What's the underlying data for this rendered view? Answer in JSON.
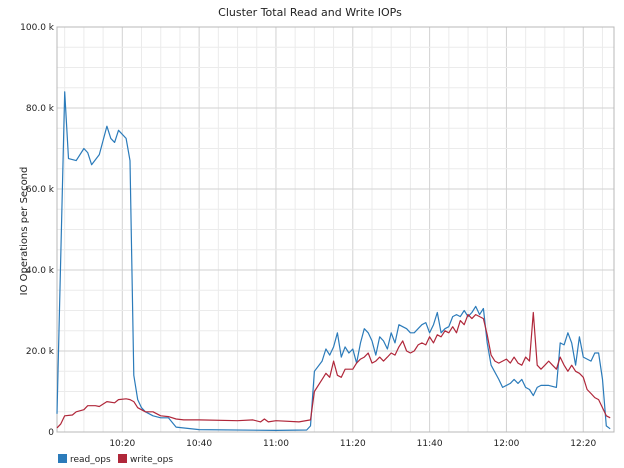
{
  "chart_data": {
    "type": "line",
    "title": "Cluster Total Read and Write IOPs",
    "xlabel": "",
    "ylabel": "IO Operations per Second",
    "ylim": [
      0,
      100000
    ],
    "xlim": [
      "10:03",
      "12:28"
    ],
    "grid": true,
    "legend_placement": "bottom-left",
    "y_ticks": [
      0,
      20000,
      40000,
      60000,
      80000,
      100000
    ],
    "y_tick_labels": [
      "0",
      "20.0 k",
      "40.0 k",
      "60.0 k",
      "80.0 k",
      "100.0 k"
    ],
    "x_tick_labels": [
      "10:20",
      "10:40",
      "11:00",
      "11:20",
      "11:40",
      "12:00",
      "12:20"
    ],
    "series": [
      {
        "name": "read_ops",
        "color": "#2b7bba",
        "points": [
          [
            "10:03",
            4500
          ],
          [
            "10:05",
            84000
          ],
          [
            "10:06",
            67500
          ],
          [
            "10:08",
            67000
          ],
          [
            "10:10",
            70000
          ],
          [
            "10:11",
            69000
          ],
          [
            "10:12",
            66000
          ],
          [
            "10:14",
            68500
          ],
          [
            "10:16",
            75500
          ],
          [
            "10:17",
            72500
          ],
          [
            "10:18",
            71500
          ],
          [
            "10:19",
            74500
          ],
          [
            "10:21",
            72500
          ],
          [
            "10:22",
            67000
          ],
          [
            "10:23",
            14000
          ],
          [
            "10:24",
            8000
          ],
          [
            "10:25",
            6000
          ],
          [
            "10:26",
            5000
          ],
          [
            "10:28",
            4000
          ],
          [
            "10:30",
            3500
          ],
          [
            "10:32",
            3500
          ],
          [
            "10:34",
            1200
          ],
          [
            "10:40",
            600
          ],
          [
            "11:00",
            400
          ],
          [
            "11:08",
            500
          ],
          [
            "11:09",
            1500
          ],
          [
            "11:10",
            15000
          ],
          [
            "11:12",
            17500
          ],
          [
            "11:13",
            20500
          ],
          [
            "11:14",
            19000
          ],
          [
            "11:15",
            21000
          ],
          [
            "11:16",
            24500
          ],
          [
            "11:17",
            18500
          ],
          [
            "11:18",
            21000
          ],
          [
            "11:19",
            19500
          ],
          [
            "11:20",
            20500
          ],
          [
            "11:21",
            17000
          ],
          [
            "11:22",
            22000
          ],
          [
            "11:23",
            25500
          ],
          [
            "11:24",
            24500
          ],
          [
            "11:25",
            22500
          ],
          [
            "11:26",
            19000
          ],
          [
            "11:27",
            23500
          ],
          [
            "11:28",
            22500
          ],
          [
            "11:29",
            20500
          ],
          [
            "11:30",
            24500
          ],
          [
            "11:31",
            22000
          ],
          [
            "11:32",
            26500
          ],
          [
            "11:33",
            26000
          ],
          [
            "11:34",
            25500
          ],
          [
            "11:35",
            24500
          ],
          [
            "11:36",
            24500
          ],
          [
            "11:37",
            25500
          ],
          [
            "11:38",
            26500
          ],
          [
            "11:39",
            27000
          ],
          [
            "11:40",
            24500
          ],
          [
            "11:41",
            26500
          ],
          [
            "11:42",
            29500
          ],
          [
            "11:43",
            24500
          ],
          [
            "11:44",
            25500
          ],
          [
            "11:45",
            26000
          ],
          [
            "11:46",
            28500
          ],
          [
            "11:47",
            29000
          ],
          [
            "11:48",
            28500
          ],
          [
            "11:49",
            30000
          ],
          [
            "11:50",
            28500
          ],
          [
            "11:51",
            29500
          ],
          [
            "11:52",
            31000
          ],
          [
            "11:53",
            29000
          ],
          [
            "11:54",
            30500
          ],
          [
            "11:55",
            22000
          ],
          [
            "11:56",
            16500
          ],
          [
            "11:58",
            13000
          ],
          [
            "11:59",
            11000
          ],
          [
            "12:01",
            12000
          ],
          [
            "12:02",
            13000
          ],
          [
            "12:03",
            12000
          ],
          [
            "12:04",
            13000
          ],
          [
            "12:05",
            11000
          ],
          [
            "12:06",
            10500
          ],
          [
            "12:07",
            9000
          ],
          [
            "12:08",
            11000
          ],
          [
            "12:09",
            11500
          ],
          [
            "12:11",
            11500
          ],
          [
            "12:13",
            11000
          ],
          [
            "12:14",
            22000
          ],
          [
            "12:15",
            21500
          ],
          [
            "12:16",
            24500
          ],
          [
            "12:17",
            22000
          ],
          [
            "12:18",
            16500
          ],
          [
            "12:19",
            23500
          ],
          [
            "12:20",
            18500
          ],
          [
            "12:22",
            17500
          ],
          [
            "12:23",
            19500
          ],
          [
            "12:24",
            19500
          ],
          [
            "12:25",
            13000
          ],
          [
            "12:26",
            1500
          ],
          [
            "12:27",
            800
          ]
        ]
      },
      {
        "name": "write_ops",
        "color": "#b0273a",
        "points": [
          [
            "10:03",
            1000
          ],
          [
            "10:04",
            2000
          ],
          [
            "10:05",
            4000
          ],
          [
            "10:07",
            4200
          ],
          [
            "10:08",
            5000
          ],
          [
            "10:10",
            5500
          ],
          [
            "10:11",
            6500
          ],
          [
            "10:13",
            6500
          ],
          [
            "10:14",
            6300
          ],
          [
            "10:16",
            7500
          ],
          [
            "10:18",
            7200
          ],
          [
            "10:19",
            8000
          ],
          [
            "10:21",
            8200
          ],
          [
            "10:22",
            8000
          ],
          [
            "10:23",
            7500
          ],
          [
            "10:24",
            6000
          ],
          [
            "10:26",
            5000
          ],
          [
            "10:28",
            5000
          ],
          [
            "10:30",
            4000
          ],
          [
            "10:32",
            3800
          ],
          [
            "10:34",
            3200
          ],
          [
            "10:36",
            3000
          ],
          [
            "10:40",
            3000
          ],
          [
            "10:50",
            2800
          ],
          [
            "10:54",
            3000
          ],
          [
            "10:56",
            2500
          ],
          [
            "10:57",
            3200
          ],
          [
            "10:58",
            2500
          ],
          [
            "11:00",
            2800
          ],
          [
            "11:06",
            2500
          ],
          [
            "11:09",
            3000
          ],
          [
            "11:10",
            10000
          ],
          [
            "11:12",
            13000
          ],
          [
            "11:13",
            14500
          ],
          [
            "11:14",
            13500
          ],
          [
            "11:15",
            17500
          ],
          [
            "11:16",
            14000
          ],
          [
            "11:17",
            13500
          ],
          [
            "11:18",
            15500
          ],
          [
            "11:19",
            15500
          ],
          [
            "11:20",
            15500
          ],
          [
            "11:21",
            17000
          ],
          [
            "11:22",
            18000
          ],
          [
            "11:23",
            18500
          ],
          [
            "11:24",
            19500
          ],
          [
            "11:25",
            17000
          ],
          [
            "11:26",
            17500
          ],
          [
            "11:27",
            18500
          ],
          [
            "11:28",
            17500
          ],
          [
            "11:29",
            18500
          ],
          [
            "11:30",
            19500
          ],
          [
            "11:31",
            19000
          ],
          [
            "11:32",
            21000
          ],
          [
            "11:33",
            22500
          ],
          [
            "11:34",
            20000
          ],
          [
            "11:35",
            19500
          ],
          [
            "11:36",
            20000
          ],
          [
            "11:37",
            21500
          ],
          [
            "11:38",
            22000
          ],
          [
            "11:39",
            21500
          ],
          [
            "11:40",
            23500
          ],
          [
            "11:41",
            22000
          ],
          [
            "11:42",
            24000
          ],
          [
            "11:43",
            23500
          ],
          [
            "11:44",
            25000
          ],
          [
            "11:45",
            24500
          ],
          [
            "11:46",
            26000
          ],
          [
            "11:47",
            24500
          ],
          [
            "11:48",
            27500
          ],
          [
            "11:49",
            26500
          ],
          [
            "11:50",
            29000
          ],
          [
            "11:51",
            28000
          ],
          [
            "11:52",
            29000
          ],
          [
            "11:53",
            28500
          ],
          [
            "11:54",
            28000
          ],
          [
            "11:55",
            24000
          ],
          [
            "11:56",
            19000
          ],
          [
            "11:57",
            17500
          ],
          [
            "11:58",
            17000
          ],
          [
            "11:59",
            17500
          ],
          [
            "12:00",
            18000
          ],
          [
            "12:01",
            17000
          ],
          [
            "12:02",
            18500
          ],
          [
            "12:03",
            17000
          ],
          [
            "12:04",
            16500
          ],
          [
            "12:05",
            18500
          ],
          [
            "12:06",
            17500
          ],
          [
            "12:07",
            29500
          ],
          [
            "12:08",
            16500
          ],
          [
            "12:09",
            15500
          ],
          [
            "12:10",
            16500
          ],
          [
            "12:11",
            17500
          ],
          [
            "12:12",
            16500
          ],
          [
            "12:13",
            15500
          ],
          [
            "12:14",
            18500
          ],
          [
            "12:15",
            16500
          ],
          [
            "12:16",
            15000
          ],
          [
            "12:17",
            16500
          ],
          [
            "12:18",
            15000
          ],
          [
            "12:19",
            14500
          ],
          [
            "12:20",
            13500
          ],
          [
            "12:21",
            10500
          ],
          [
            "12:22",
            9500
          ],
          [
            "12:23",
            8500
          ],
          [
            "12:24",
            8000
          ],
          [
            "12:25",
            6000
          ],
          [
            "12:26",
            4000
          ],
          [
            "12:27",
            3500
          ]
        ]
      }
    ]
  }
}
